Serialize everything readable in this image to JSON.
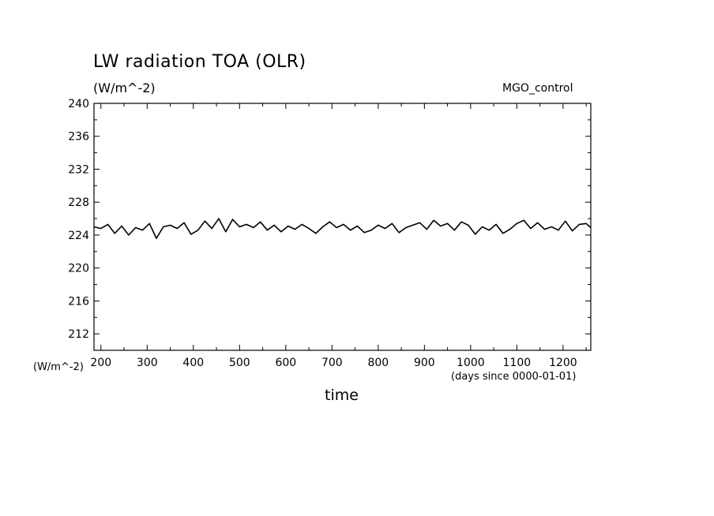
{
  "title": "LW radiation TOA (OLR)",
  "units_label": "(W/m^-2)",
  "run_label": "MGO_control",
  "y_units_label": "(W/m^-2)",
  "x_units_label": "(days since 0000-01-01)",
  "x_axis_label": "time",
  "chart_data": {
    "type": "line",
    "title": "LW radiation TOA (OLR)",
    "xlabel": "time",
    "ylabel": "(W/m^-2)",
    "xlim": [
      185,
      1260
    ],
    "ylim": [
      210,
      240
    ],
    "x_ticks": [
      200,
      300,
      400,
      500,
      600,
      700,
      800,
      900,
      1000,
      1100,
      1200
    ],
    "y_ticks": [
      212,
      216,
      220,
      224,
      228,
      232,
      236,
      240
    ],
    "grid": false,
    "line_color": "#000000",
    "series": [
      {
        "name": "MGO_control",
        "x": [
          185,
          200,
          215,
          230,
          245,
          260,
          275,
          290,
          305,
          320,
          335,
          350,
          365,
          380,
          395,
          410,
          425,
          440,
          455,
          470,
          485,
          500,
          515,
          530,
          545,
          560,
          575,
          590,
          605,
          620,
          635,
          650,
          665,
          680,
          695,
          710,
          725,
          740,
          755,
          770,
          785,
          800,
          815,
          830,
          845,
          860,
          875,
          890,
          905,
          920,
          935,
          950,
          965,
          980,
          995,
          1010,
          1025,
          1040,
          1055,
          1070,
          1085,
          1100,
          1115,
          1130,
          1145,
          1160,
          1175,
          1190,
          1205,
          1220,
          1235,
          1250,
          1260
        ],
        "values": [
          225.0,
          224.8,
          225.3,
          224.2,
          225.1,
          224.0,
          224.9,
          224.6,
          225.4,
          223.6,
          225.0,
          225.2,
          224.8,
          225.5,
          224.1,
          224.6,
          225.7,
          224.8,
          226.0,
          224.4,
          225.9,
          225.0,
          225.3,
          224.9,
          225.6,
          224.6,
          225.2,
          224.4,
          225.1,
          224.7,
          225.3,
          224.8,
          224.2,
          225.0,
          225.6,
          224.9,
          225.3,
          224.6,
          225.1,
          224.3,
          224.6,
          225.2,
          224.8,
          225.4,
          224.3,
          224.9,
          225.2,
          225.5,
          224.7,
          225.8,
          225.1,
          225.4,
          224.6,
          225.6,
          225.2,
          224.1,
          225.0,
          224.6,
          225.3,
          224.2,
          224.7,
          225.4,
          225.8,
          224.8,
          225.5,
          224.7,
          225.0,
          224.6,
          225.7,
          224.5,
          225.3,
          225.4,
          224.9
        ]
      }
    ]
  }
}
